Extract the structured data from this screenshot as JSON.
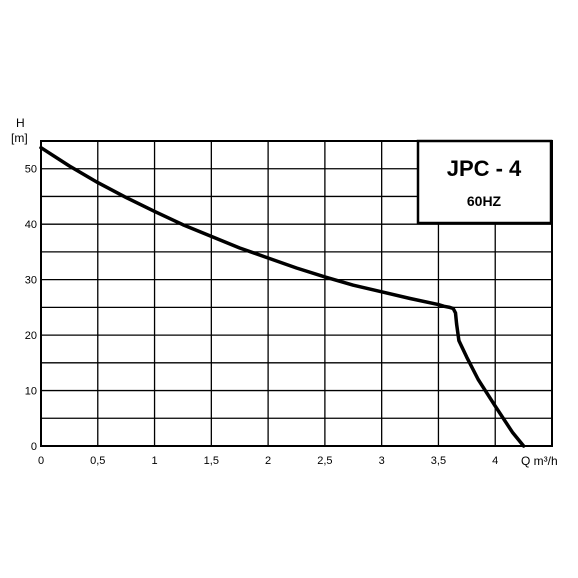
{
  "chart_data": {
    "type": "line",
    "title": "JPC - 4",
    "subtitle": "60HZ",
    "ylabel": "H",
    "yunit": "[m]",
    "xlabel": "Q m³/h",
    "xlim": [
      0,
      4.5
    ],
    "ylim": [
      0,
      55
    ],
    "xticks": [
      0,
      0.5,
      1,
      1.5,
      2,
      2.5,
      3,
      3.5,
      4
    ],
    "xtick_labels": [
      "0",
      "0,5",
      "1",
      "1,5",
      "2",
      "2,5",
      "3",
      "3,5",
      "4"
    ],
    "yticks": [
      0,
      10,
      20,
      30,
      40,
      50
    ],
    "ytick_labels": [
      "0",
      "10",
      "20",
      "30",
      "40",
      "50"
    ],
    "grid": true,
    "legend_placement": "top-right",
    "series": [
      {
        "x": [
          0,
          0.25,
          0.5,
          0.75,
          1.0,
          1.25,
          1.5,
          1.75,
          2.0,
          2.25,
          2.5,
          2.75,
          3.0,
          3.25,
          3.5,
          3.55,
          3.6,
          3.63,
          3.65,
          3.66,
          3.68,
          3.75,
          3.85,
          4.0,
          4.15,
          4.25
        ],
        "y": [
          53.8,
          50.5,
          47.5,
          44.8,
          42.3,
          39.9,
          37.8,
          35.7,
          33.9,
          32.1,
          30.5,
          29.0,
          27.8,
          26.6,
          25.5,
          25.2,
          25.0,
          24.8,
          24.0,
          22.0,
          19.0,
          16.0,
          12.0,
          7.2,
          2.5,
          0.0
        ]
      }
    ]
  }
}
